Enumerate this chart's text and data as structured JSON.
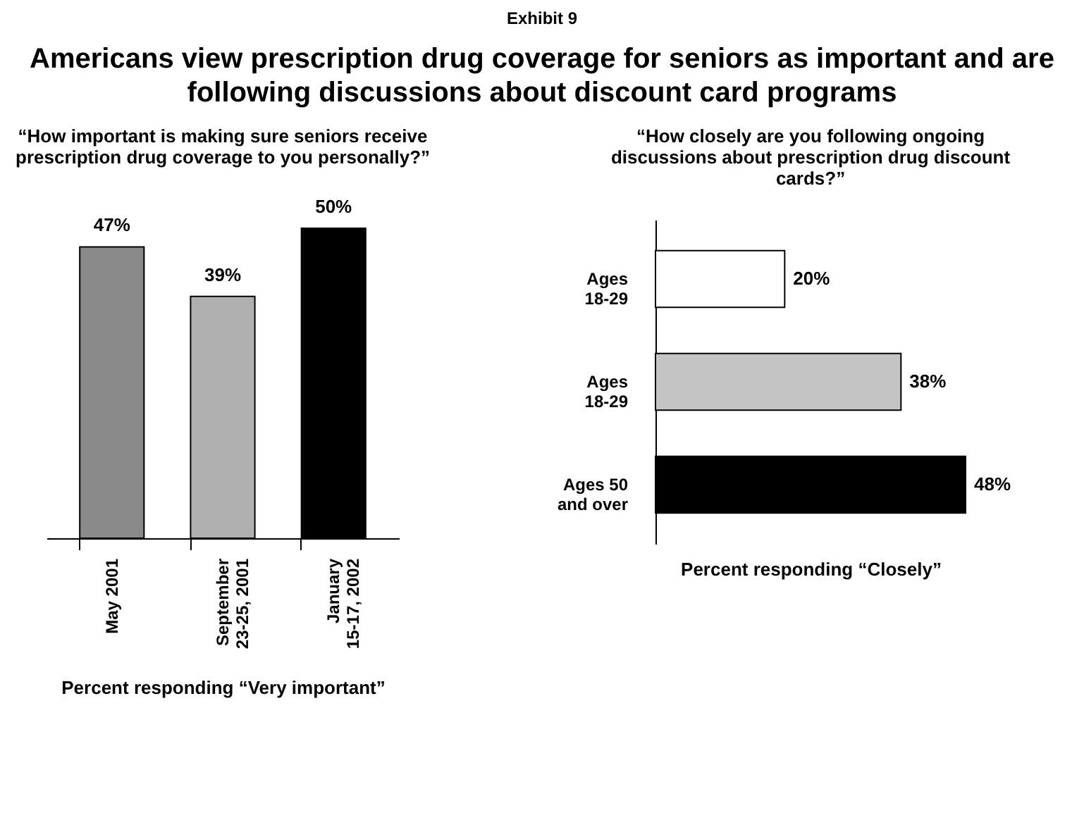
{
  "chart_data": [
    {
      "type": "other",
      "title": "Exhibit 9",
      "subtitle": "Americans view prescription drug coverage for seniors as important and are following discussions about discount card programs"
    },
    {
      "type": "bar",
      "title": "“How important is making sure seniors receive prescription drug coverage to you personally?”",
      "categories": [
        "May 2001",
        "September\n23-25, 2001",
        "January\n15-17, 2002"
      ],
      "values": [
        47,
        39,
        50
      ],
      "colors": [
        "#8a8a8a",
        "#b0b0b0",
        "#000000"
      ],
      "value_labels": [
        "47%",
        "39%",
        "50%"
      ],
      "xlabel": "Percent responding “Very important”"
    },
    {
      "type": "bar",
      "orientation": "horizontal",
      "title": "“How closely are you following ongoing discussions about prescription drug discount cards?”",
      "categories": [
        "Ages\n18-29",
        "Ages\n18-29",
        "Ages 50\nand over"
      ],
      "values": [
        20,
        38,
        48
      ],
      "colors": [
        "#ffffff",
        "#c4c4c4",
        "#000000"
      ],
      "value_labels": [
        "20%",
        "38%",
        "48%"
      ],
      "xlabel": "Percent responding “Closely”"
    }
  ]
}
